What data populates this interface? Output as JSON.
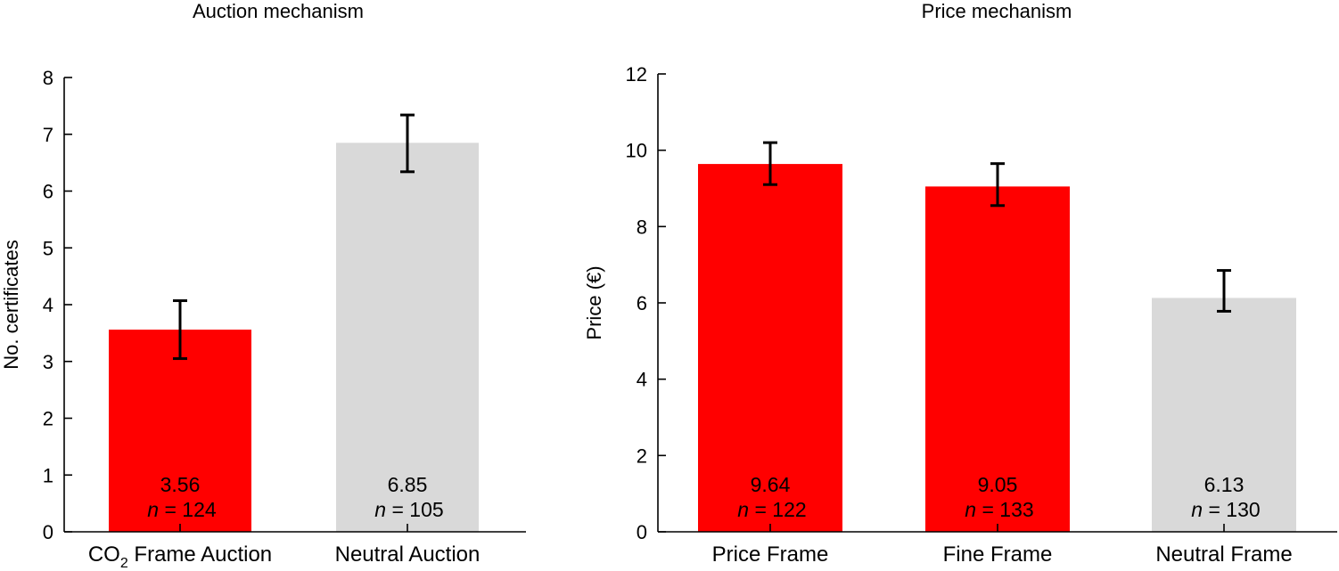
{
  "chart_data": [
    {
      "type": "bar",
      "title": "Auction mechanism",
      "ylabel": "No. certificates",
      "xlabel": "",
      "ylim": [
        0,
        8
      ],
      "yticks": [
        "0",
        "1",
        "2",
        "3",
        "4",
        "5",
        "6",
        "7",
        "8"
      ],
      "categories": [
        {
          "main": "CO",
          "sub": "2",
          "rest": " Frame Auction"
        },
        {
          "main": "Neutral Auction",
          "sub": "",
          "rest": ""
        }
      ],
      "values": [
        3.56,
        6.85
      ],
      "error_low": [
        3.05,
        6.34
      ],
      "error_high": [
        4.07,
        7.34
      ],
      "colors": [
        "#ff0000",
        "#d9d9d9"
      ],
      "value_labels": [
        "3.56",
        "6.85"
      ],
      "n_prefix": "n",
      "n_labels": [
        "= 124",
        "= 105"
      ],
      "grid": false
    },
    {
      "type": "bar",
      "title": "Price mechanism",
      "ylabel": "Price (€)",
      "xlabel": "",
      "ylim": [
        0,
        12
      ],
      "yticks": [
        "0",
        "2",
        "4",
        "6",
        "8",
        "10",
        "12"
      ],
      "categories": [
        {
          "main": "Price Frame",
          "sub": "",
          "rest": ""
        },
        {
          "main": "Fine Frame",
          "sub": "",
          "rest": ""
        },
        {
          "main": "Neutral Frame",
          "sub": "",
          "rest": ""
        }
      ],
      "values": [
        9.64,
        9.05,
        6.13
      ],
      "error_low": [
        9.1,
        8.55,
        5.78
      ],
      "error_high": [
        10.2,
        9.65,
        6.85
      ],
      "colors": [
        "#ff0000",
        "#ff0000",
        "#d9d9d9"
      ],
      "value_labels": [
        "9.64",
        "9.05",
        "6.13"
      ],
      "n_prefix": "n",
      "n_labels": [
        "= 122",
        "= 133",
        "= 130"
      ],
      "grid": false
    }
  ]
}
